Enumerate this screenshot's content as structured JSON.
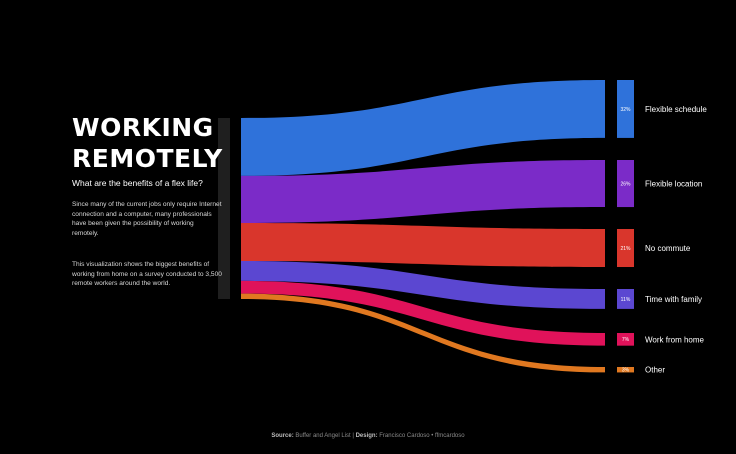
{
  "header": {
    "title_line1": "WORKING",
    "title_line2": "REMOTELY",
    "subtitle": "What are the benefits of a flex life?",
    "description_1": "Since many of the current jobs only require Internet connection and a computer, many professionals have been given the possibility of working remotely.",
    "description_2": "This visualization shows the biggest benefits of working from home on a survey conducted to 3,500 remote workers around the world."
  },
  "footer": {
    "source_label": "Source:",
    "source_text": "Buffer and Angel List",
    "separator": "|",
    "design_label": "Design:",
    "design_text": "Francisco Cardoso • ffmcardoso"
  },
  "chart_data": {
    "type": "sankey",
    "source_node": "",
    "categories": [
      "Flexible schedule",
      "Flexible location",
      "No commute",
      "Time with family",
      "Work from home",
      "Other"
    ],
    "values": [
      32,
      26,
      21,
      11,
      7,
      3
    ],
    "value_labels": [
      "32%",
      "26%",
      "21%",
      "11%",
      "7%",
      "3%"
    ],
    "colors": [
      "#2F72DA",
      "#7B2BC8",
      "#D9362C",
      "#5B47D1",
      "#E0125A",
      "#E07820"
    ],
    "source_bar_color": "#1f1f1f"
  }
}
